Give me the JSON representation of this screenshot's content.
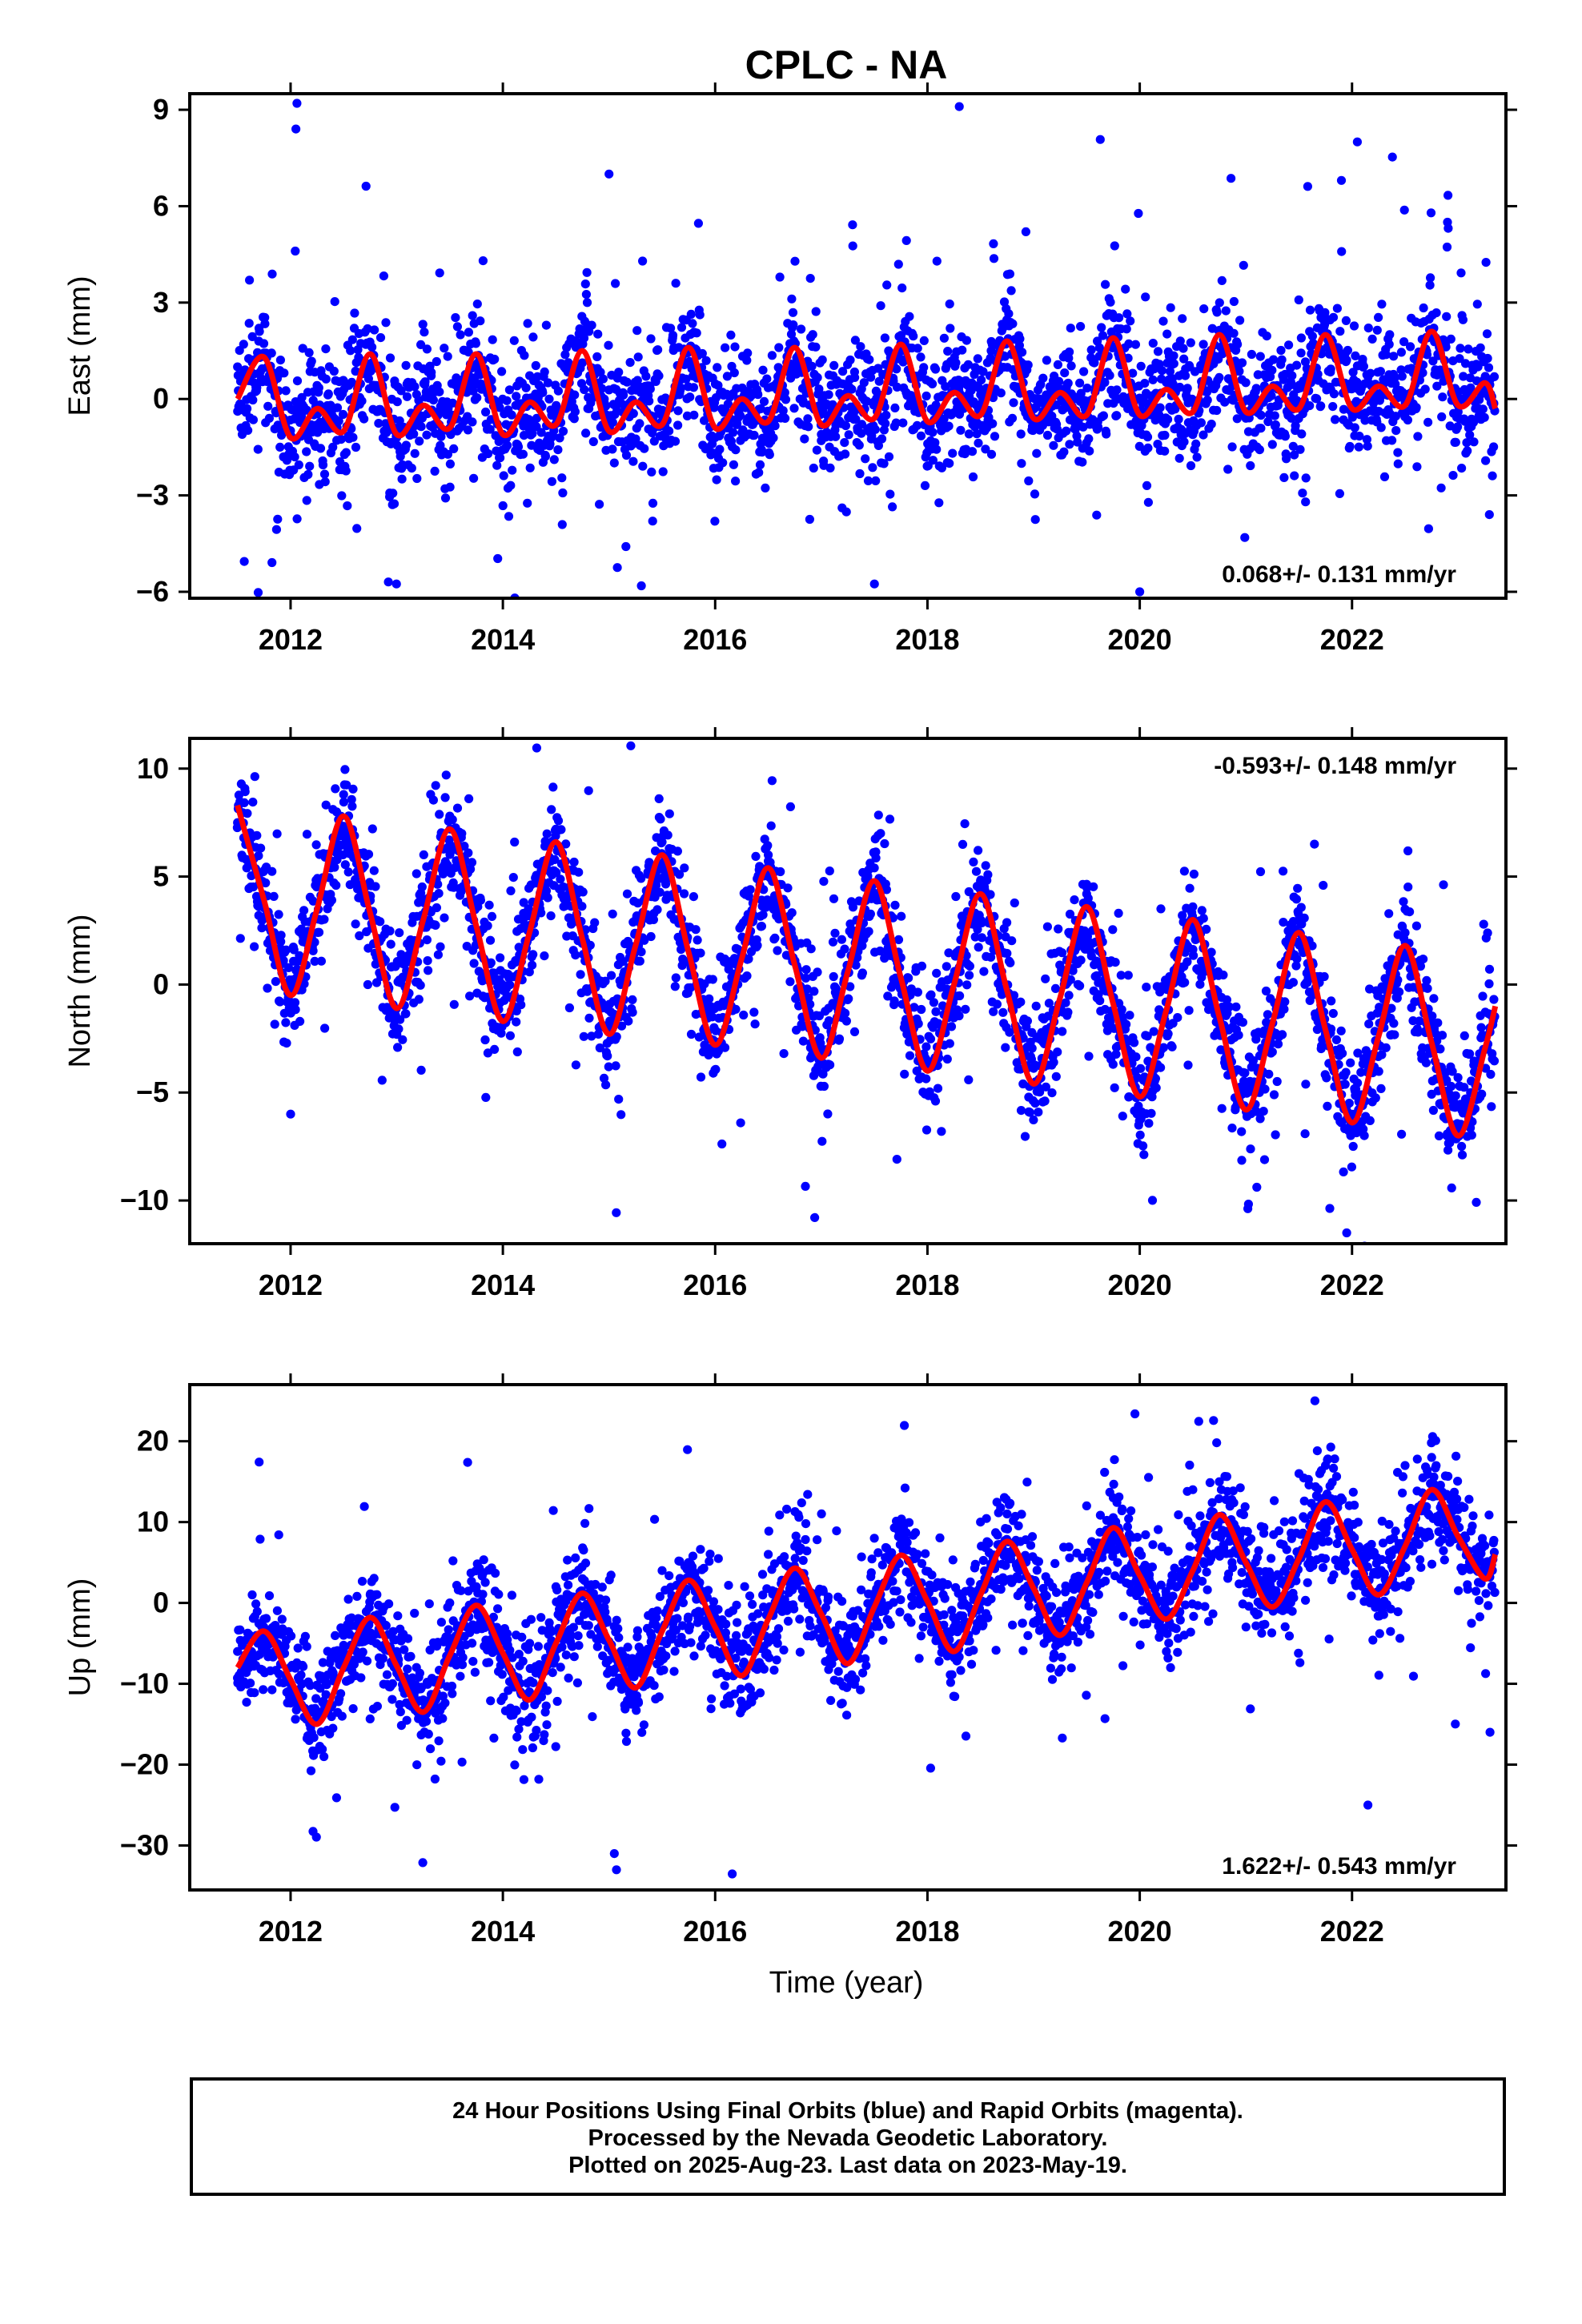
{
  "title": "CPLC - NA",
  "xlabel": "Time (year)",
  "colors": {
    "final_orbits": "#0000ff",
    "model_fit": "#ff0000",
    "frame": "#000000"
  },
  "footer": {
    "line1": "24 Hour Positions Using Final Orbits (blue) and Rapid Orbits (magenta).",
    "line2": "Processed by the Nevada Geodetic Laboratory.",
    "line3": "Plotted on 2025-Aug-23. Last data on 2023-May-19."
  },
  "chart_data": [
    {
      "type": "scatter",
      "component": "east",
      "ylabel": "East (mm)",
      "rate_label": "0.068+/- 0.131 mm/yr",
      "rate_position": "bottom-right",
      "xlim": [
        2011.05,
        2023.45
      ],
      "ylim": [
        -6.2,
        9.5
      ],
      "x_ticks": [
        "2012",
        "2014",
        "2016",
        "2018",
        "2020",
        "2022"
      ],
      "y_ticks": [
        "9",
        "6",
        "3",
        "0",
        "−3",
        "−6"
      ],
      "grid": false,
      "series": [
        {
          "role": "daily_positions",
          "color": "#0000ff",
          "x": [
            2011.5,
            2011.7,
            2011.9,
            2012.1,
            2012.3,
            2012.6,
            2012.8,
            2013.0,
            2013.2,
            2013.4,
            2013.6,
            2013.8,
            2014.0,
            2014.3,
            2014.6,
            2014.8,
            2015.0,
            2015.3,
            2015.6,
            2015.8,
            2016.0,
            2016.3,
            2016.6,
            2016.8,
            2017.0,
            2017.3,
            2017.6,
            2017.8,
            2018.0,
            2018.3,
            2018.6,
            2018.8,
            2019.0,
            2019.3,
            2019.6,
            2019.8,
            2020.0,
            2020.3,
            2020.6,
            2020.8,
            2021.0,
            2021.3,
            2021.6,
            2021.8,
            2022.0,
            2022.3,
            2022.6,
            2022.8,
            2023.0,
            2023.3,
            2012.05,
            2012.06,
            2015.0,
            2018.3,
            2020.0,
            2021.9,
            2022.05
          ],
          "y": [
            1.0,
            1.8,
            -1.5,
            -0.4,
            -0.9,
            2.2,
            0.4,
            -1.2,
            -0.3,
            -0.8,
            2.0,
            0.3,
            -1.1,
            -0.2,
            1.6,
            -0.3,
            -1.0,
            0.2,
            1.9,
            -0.5,
            -1.2,
            -0.7,
            1.6,
            0.0,
            -1.1,
            -0.4,
            1.9,
            0.2,
            -0.8,
            0.4,
            1.5,
            -0.6,
            -0.7,
            0.2,
            1.8,
            0.0,
            -0.5,
            0.1,
            1.7,
            -0.1,
            -0.6,
            0.4,
            2.1,
            0.3,
            -0.2,
            0.2,
            2.4,
            0.4,
            -0.4,
            0.6,
            8.4,
            9.2,
            7.0,
            9.1,
            -6.0,
            6.8,
            8.0
          ]
        },
        {
          "role": "model_fit",
          "color": "#ff0000",
          "x": [
            2011.5,
            2011.75,
            2012.0,
            2012.25,
            2012.5,
            2012.75,
            2013.0,
            2013.25,
            2013.5,
            2013.75,
            2014.0,
            2014.25,
            2014.5,
            2014.75,
            2015.0,
            2015.25,
            2015.5,
            2015.75,
            2016.0,
            2016.25,
            2016.5,
            2016.75,
            2017.0,
            2017.25,
            2017.5,
            2017.75,
            2018.0,
            2018.25,
            2018.5,
            2018.75,
            2019.0,
            2019.25,
            2019.5,
            2019.75,
            2020.0,
            2020.25,
            2020.5,
            2020.75,
            2021.0,
            2021.25,
            2021.5,
            2021.75,
            2022.0,
            2022.25,
            2022.5,
            2022.75,
            2023.0,
            2023.25,
            2023.35
          ],
          "y": [
            0.0,
            1.3,
            -1.2,
            -0.3,
            -1.0,
            1.4,
            -1.1,
            -0.2,
            -0.9,
            1.4,
            -1.1,
            -0.1,
            -0.8,
            1.5,
            -1.0,
            -0.1,
            -0.8,
            1.6,
            -0.9,
            0.0,
            -0.7,
            1.6,
            -0.8,
            0.1,
            -0.6,
            1.7,
            -0.7,
            0.2,
            -0.5,
            1.8,
            -0.6,
            0.2,
            -0.5,
            1.9,
            -0.5,
            0.3,
            -0.4,
            2.0,
            -0.4,
            0.4,
            -0.3,
            2.0,
            -0.3,
            0.4,
            -0.2,
            2.1,
            -0.2,
            0.5,
            -0.3
          ]
        }
      ]
    },
    {
      "type": "scatter",
      "component": "north",
      "ylabel": "North (mm)",
      "rate_label": "-0.593+/- 0.148 mm/yr",
      "rate_position": "top-right",
      "xlim": [
        2011.05,
        2023.45
      ],
      "ylim": [
        -12.0,
        11.4
      ],
      "x_ticks": [
        "2012",
        "2014",
        "2016",
        "2018",
        "2020",
        "2022"
      ],
      "y_ticks": [
        "10",
        "5",
        "0",
        "−5",
        "−10"
      ],
      "grid": false,
      "series": [
        {
          "role": "daily_positions",
          "color": "#0000ff",
          "x": [
            2011.5,
            2011.7,
            2011.9,
            2012.1,
            2012.3,
            2012.5,
            2012.7,
            2012.9,
            2013.1,
            2013.3,
            2013.5,
            2013.7,
            2013.9,
            2014.1,
            2014.3,
            2014.5,
            2014.7,
            2014.9,
            2015.1,
            2015.3,
            2015.5,
            2015.7,
            2015.9,
            2016.1,
            2016.3,
            2016.5,
            2016.7,
            2016.9,
            2017.1,
            2017.3,
            2017.5,
            2017.7,
            2017.9,
            2018.1,
            2018.3,
            2018.5,
            2018.7,
            2018.9,
            2019.1,
            2019.3,
            2019.5,
            2019.7,
            2019.9,
            2020.1,
            2020.3,
            2020.5,
            2020.7,
            2020.9,
            2021.1,
            2021.3,
            2021.5,
            2021.7,
            2021.9,
            2022.1,
            2022.3,
            2022.5,
            2022.7,
            2022.9,
            2023.1,
            2023.3,
            2012.0,
            2021.95
          ],
          "y": [
            7.5,
            3.2,
            -0.8,
            0.5,
            4.8,
            8.8,
            4.5,
            -1.2,
            -0.5,
            4.0,
            7.8,
            3.8,
            -1.8,
            -1.0,
            3.2,
            7.2,
            3.0,
            -2.3,
            -1.5,
            2.8,
            6.6,
            2.4,
            -2.8,
            -2.0,
            2.0,
            6.0,
            1.8,
            -3.4,
            -2.6,
            1.4,
            5.4,
            1.2,
            -4.0,
            -3.2,
            0.8,
            4.8,
            0.6,
            -4.6,
            -3.8,
            0.2,
            4.2,
            0.0,
            -5.2,
            -4.4,
            -0.4,
            3.6,
            -0.6,
            -5.8,
            -5.0,
            -1.0,
            3.0,
            -1.2,
            -6.4,
            -5.6,
            -1.6,
            2.4,
            -1.8,
            -7.0,
            -6.2,
            -2.2,
            -6.0,
            -11.5
          ]
        },
        {
          "role": "model_fit",
          "color": "#ff0000",
          "x": [
            2011.5,
            2011.75,
            2012.0,
            2012.25,
            2012.5,
            2012.75,
            2013.0,
            2013.25,
            2013.5,
            2013.75,
            2014.0,
            2014.25,
            2014.5,
            2014.75,
            2015.0,
            2015.25,
            2015.5,
            2015.75,
            2016.0,
            2016.25,
            2016.5,
            2016.75,
            2017.0,
            2017.25,
            2017.5,
            2017.75,
            2018.0,
            2018.25,
            2018.5,
            2018.75,
            2019.0,
            2019.25,
            2019.5,
            2019.75,
            2020.0,
            2020.25,
            2020.5,
            2020.75,
            2021.0,
            2021.25,
            2021.5,
            2021.75,
            2022.0,
            2022.25,
            2022.5,
            2022.75,
            2023.0,
            2023.25,
            2023.35
          ],
          "y": [
            8.3,
            3.9,
            -0.5,
            3.5,
            7.8,
            3.3,
            -1.1,
            3.0,
            7.2,
            2.7,
            -1.7,
            2.4,
            6.6,
            2.1,
            -2.3,
            1.8,
            6.0,
            1.5,
            -2.8,
            1.2,
            5.4,
            0.9,
            -3.4,
            0.6,
            4.8,
            0.3,
            -4.0,
            0.0,
            4.2,
            -0.3,
            -4.6,
            -0.6,
            3.6,
            -0.9,
            -5.2,
            -1.2,
            3.0,
            -1.5,
            -5.8,
            -1.8,
            2.4,
            -2.1,
            -6.4,
            -2.4,
            1.8,
            -2.7,
            -7.0,
            -3.0,
            -1.0
          ]
        }
      ]
    },
    {
      "type": "scatter",
      "component": "up",
      "ylabel": "Up (mm)",
      "rate_label": "1.622+/- 0.543 mm/yr",
      "rate_position": "bottom-right",
      "xlim": [
        2011.05,
        2023.45
      ],
      "ylim": [
        -35.5,
        27.0
      ],
      "x_ticks": [
        "2012",
        "2014",
        "2016",
        "2018",
        "2020",
        "2022"
      ],
      "y_ticks": [
        "20",
        "10",
        "0",
        "−10",
        "−20",
        "−30"
      ],
      "grid": false,
      "series": [
        {
          "role": "daily_positions",
          "color": "#0000ff",
          "x": [
            2011.5,
            2011.75,
            2012.0,
            2012.25,
            2012.5,
            2012.75,
            2013.0,
            2013.25,
            2013.5,
            2013.75,
            2014.0,
            2014.25,
            2014.5,
            2014.75,
            2015.0,
            2015.25,
            2015.5,
            2015.75,
            2016.0,
            2016.25,
            2016.5,
            2016.75,
            2017.0,
            2017.25,
            2017.5,
            2017.75,
            2018.0,
            2018.25,
            2018.5,
            2018.75,
            2019.0,
            2019.25,
            2019.5,
            2019.75,
            2020.0,
            2020.25,
            2020.5,
            2020.75,
            2021.0,
            2021.25,
            2021.5,
            2021.75,
            2022.0,
            2022.25,
            2022.5,
            2022.75,
            2023.0,
            2023.25,
            2015.05,
            2015.07,
            2022.15,
            2023.3,
            2021.65
          ],
          "y": [
            -6,
            -2,
            -10,
            -14,
            -4,
            1,
            -6,
            -12,
            0,
            2,
            -7,
            -11,
            2,
            3,
            -5,
            -8,
            4,
            5,
            -3,
            -6,
            6,
            7,
            -2,
            -4,
            8,
            9,
            0,
            -3,
            10,
            11,
            2,
            -1,
            12,
            13,
            3,
            1,
            14,
            15,
            5,
            3,
            16,
            17,
            7,
            4,
            17,
            18,
            8,
            5,
            -31,
            -33,
            -25,
            -16,
            25
          ]
        },
        {
          "role": "model_fit",
          "color": "#ff0000",
          "x": [
            2011.5,
            2011.75,
            2012.0,
            2012.25,
            2012.5,
            2012.75,
            2013.0,
            2013.25,
            2013.5,
            2013.75,
            2014.0,
            2014.25,
            2014.5,
            2014.75,
            2015.0,
            2015.25,
            2015.5,
            2015.75,
            2016.0,
            2016.25,
            2016.5,
            2016.75,
            2017.0,
            2017.25,
            2017.5,
            2017.75,
            2018.0,
            2018.25,
            2018.5,
            2018.75,
            2019.0,
            2019.25,
            2019.5,
            2019.75,
            2020.0,
            2020.25,
            2020.5,
            2020.75,
            2021.0,
            2021.25,
            2021.5,
            2021.75,
            2022.0,
            2022.25,
            2022.5,
            2022.75,
            2023.0,
            2023.25,
            2023.35
          ],
          "y": [
            -8,
            -3.5,
            -9.5,
            -15,
            -8,
            -1.8,
            -7.8,
            -13.5,
            -6.5,
            -0.3,
            -6.2,
            -12,
            -5,
            1.2,
            -4.6,
            -10.5,
            -3.5,
            2.8,
            -3.0,
            -9,
            -2,
            4.3,
            -1.4,
            -7.5,
            -0.5,
            5.9,
            0.2,
            -6,
            1.0,
            7.6,
            1.8,
            -4,
            2.5,
            9.3,
            3.4,
            -2,
            4.0,
            10.9,
            5.0,
            -0.5,
            5.5,
            12.5,
            6.6,
            1,
            7.0,
            14.0,
            8.2,
            3,
            6
          ]
        }
      ]
    }
  ]
}
